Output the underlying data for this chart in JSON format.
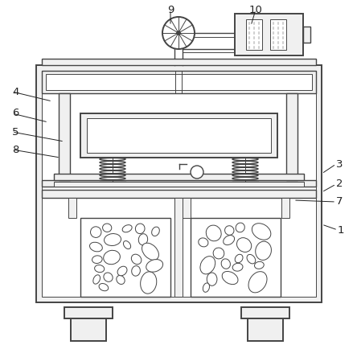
{
  "bg_color": "#ffffff",
  "line_color": "#444444",
  "fill_light": "#f0f0f0",
  "fill_mid": "#d0d0d0",
  "fill_dark": "#aaaaaa",
  "label_color": "#222222",
  "lw_main": 1.4,
  "lw_med": 1.0,
  "lw_thin": 0.7
}
